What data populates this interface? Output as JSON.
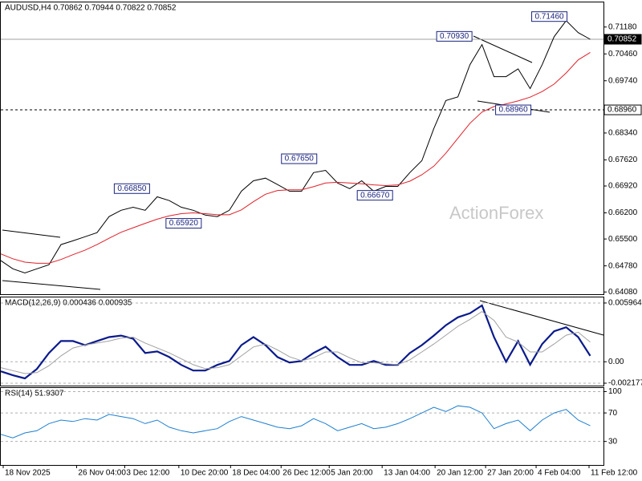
{
  "chart_data": [
    {
      "type": "line",
      "title": "AUDUSD,H4  0.70862 0.70944 0.70822 0.70852",
      "watermark": "ActionForex",
      "x": [
        0,
        1,
        2,
        3,
        4,
        5,
        6,
        7,
        8,
        9,
        10,
        11,
        12,
        13,
        14,
        15,
        16,
        17,
        18,
        19,
        20,
        21,
        22,
        23,
        24,
        25,
        26,
        27,
        28,
        29,
        30,
        31,
        32,
        33,
        34,
        35,
        36,
        37,
        38,
        39,
        40,
        41,
        42,
        43,
        44,
        45,
        46,
        47,
        48,
        49
      ],
      "xlim": [
        0,
        50.1
      ],
      "ylim": [
        0.6402,
        0.7184
      ],
      "yticks": [
        {
          "value": 0.7118,
          "label": "0.71180"
        },
        {
          "value": 0.7046,
          "label": "0.70460"
        },
        {
          "value": 0.6974,
          "label": "0.69740"
        },
        {
          "value": 0.6834,
          "label": "0.68340"
        },
        {
          "value": 0.6762,
          "label": "0.67620"
        },
        {
          "value": 0.6692,
          "label": "0.66920"
        },
        {
          "value": 0.662,
          "label": "0.66200"
        },
        {
          "value": 0.655,
          "label": "0.65500"
        },
        {
          "value": 0.6478,
          "label": "0.64780"
        },
        {
          "value": 0.6408,
          "label": "0.64080"
        }
      ],
      "series": [
        {
          "color": "#000000",
          "values": [
            0.6492,
            0.647,
            0.6459,
            0.647,
            0.6481,
            0.6535,
            0.6545,
            0.6556,
            0.6567,
            0.661,
            0.6627,
            0.6635,
            0.6627,
            0.6663,
            0.6653,
            0.6635,
            0.6627,
            0.6614,
            0.661,
            0.6627,
            0.6678,
            0.6706,
            0.6713,
            0.6696,
            0.6678,
            0.6678,
            0.6728,
            0.6734,
            0.67,
            0.6685,
            0.6706,
            0.6678,
            0.6691,
            0.6691,
            0.6728,
            0.676,
            0.6846,
            0.6921,
            0.6931,
            0.7017,
            0.7071,
            0.6985,
            0.6985,
            0.7006,
            0.6953,
            0.7017,
            0.7092,
            0.7135,
            0.7103,
            0.70852
          ]
        },
        {
          "color": "#e0202a",
          "values": [
            0.651,
            0.6497,
            0.6488,
            0.6485,
            0.6485,
            0.6495,
            0.6508,
            0.652,
            0.6535,
            0.6552,
            0.6568,
            0.658,
            0.6592,
            0.6603,
            0.6612,
            0.6618,
            0.662,
            0.6618,
            0.6615,
            0.6615,
            0.6628,
            0.665,
            0.667,
            0.668,
            0.6682,
            0.6682,
            0.669,
            0.67,
            0.6702,
            0.67,
            0.6698,
            0.6695,
            0.6693,
            0.6695,
            0.6705,
            0.6722,
            0.6745,
            0.678,
            0.682,
            0.686,
            0.689,
            0.6905,
            0.6912,
            0.692,
            0.693,
            0.6945,
            0.6965,
            0.6995,
            0.703,
            0.705
          ]
        }
      ],
      "hlines": [
        {
          "value": 0.70852,
          "label": "0.70852",
          "style": "solid"
        },
        {
          "value": 0.6896,
          "label": "0.68960",
          "style": "dashed"
        }
      ],
      "annotations": [
        {
          "label": "0.66850",
          "x": 10.9,
          "value": 0.6685
        },
        {
          "label": "0.65920",
          "x": 15.2,
          "value": 0.6592
        },
        {
          "label": "0.67650",
          "x": 24.8,
          "value": 0.6765
        },
        {
          "label": "0.66670",
          "x": 31.1,
          "value": 0.6667
        },
        {
          "label": "0.70930",
          "x": 37.7,
          "value": 0.7093
        },
        {
          "label": "0.68960",
          "x": 42.6,
          "value": 0.6896
        },
        {
          "label": "0.71460",
          "x": 45.6,
          "value": 0.7146
        }
      ]
    },
    {
      "type": "line",
      "title": "MACD(12,26,9) 0.000436 0.000935",
      "ylim": [
        -0.00242,
        0.00653
      ],
      "yticks": [
        0.005964,
        {
          "value": 0,
          "label": "0.00"
        },
        -0.002177
      ],
      "series": [
        {
          "color": "#0a1a8c",
          "width": 2.2,
          "values": [
            -0.00097,
            -0.00137,
            -0.00169,
            -0.00073,
            0.00089,
            0.0021,
            0.0021,
            0.00169,
            0.0021,
            0.0025,
            0.00266,
            0.00234,
            0.00089,
            0.00105,
            0.00048,
            -0.00032,
            -0.00089,
            -0.00089,
            -0.00032,
            8e-05,
            0.00169,
            0.0025,
            0.00169,
            0.00048,
            -8e-05,
            8e-05,
            0.00089,
            0.00153,
            0.00048,
            -0.00032,
            -0.00032,
            8e-05,
            -0.00032,
            -0.00032,
            0.00089,
            0.00169,
            0.00266,
            0.00371,
            0.00451,
            0.00492,
            0.00572,
            0.0025,
            0,
            0.0021,
            -0.0003,
            0.0018,
            0.0031,
            0.0035,
            0.0025,
            0.0006
          ]
        },
        {
          "color": "#a0a0a0",
          "width": 1,
          "values": [
            -0.0006,
            -0.0009,
            -0.0012,
            -0.0011,
            -0.0004,
            0.0006,
            0.0014,
            0.0017,
            0.0019,
            0.0021,
            0.0024,
            0.0025,
            0.0019,
            0.0014,
            0.0009,
            0.0003,
            -0.0003,
            -0.0007,
            -0.0006,
            -0.0003,
            0.0006,
            0.0015,
            0.0018,
            0.0012,
            0.0005,
            0.0001,
            0.0004,
            0.001,
            0.001,
            0.0004,
            -0.0001,
            -0.0001,
            -0.0002,
            -0.0003,
            0.0002,
            0.001,
            0.0018,
            0.0027,
            0.0036,
            0.0043,
            0.0051,
            0.0042,
            0.0025,
            0.002,
            0.001,
            0.001,
            0.0018,
            0.0027,
            0.003,
            0.002
          ]
        }
      ]
    },
    {
      "type": "line",
      "title": "RSI(14) 51.9307",
      "ylim": [
        -3,
        105
      ],
      "yticks": [
        100,
        70,
        30
      ],
      "xticks": [
        {
          "value": 0.2,
          "label": "18 Nov 2025"
        },
        {
          "value": 6.3,
          "label": "26 Nov 04:00"
        },
        {
          "value": 10.3,
          "label": "3 Dec 12:00"
        },
        {
          "value": 14.8,
          "label": "10 Dec 20:00"
        },
        {
          "value": 19.1,
          "label": "18 Dec 04:00"
        },
        {
          "value": 23.3,
          "label": "26 Dec 12:00"
        },
        {
          "value": 27.3,
          "label": "5 Jan 20:00"
        },
        {
          "value": 31.7,
          "label": "13 Jan 04:00"
        },
        {
          "value": 36.1,
          "label": "20 Jan 12:00"
        },
        {
          "value": 40.3,
          "label": "27 Jan 20:00"
        },
        {
          "value": 44.5,
          "label": "4 Feb 04:00"
        },
        {
          "value": 48.9,
          "label": "11 Feb 12:00"
        }
      ],
      "series": [
        {
          "color": "#1e7fd0",
          "width": 1,
          "values": [
            40,
            35,
            42,
            45,
            55,
            60,
            58,
            62,
            60,
            68,
            65,
            62,
            55,
            60,
            50,
            45,
            42,
            45,
            48,
            58,
            65,
            60,
            55,
            50,
            48,
            52,
            62,
            55,
            45,
            50,
            55,
            48,
            50,
            55,
            62,
            70,
            78,
            72,
            80,
            78,
            70,
            48,
            55,
            60,
            45,
            60,
            70,
            75,
            60,
            52
          ]
        }
      ]
    }
  ]
}
